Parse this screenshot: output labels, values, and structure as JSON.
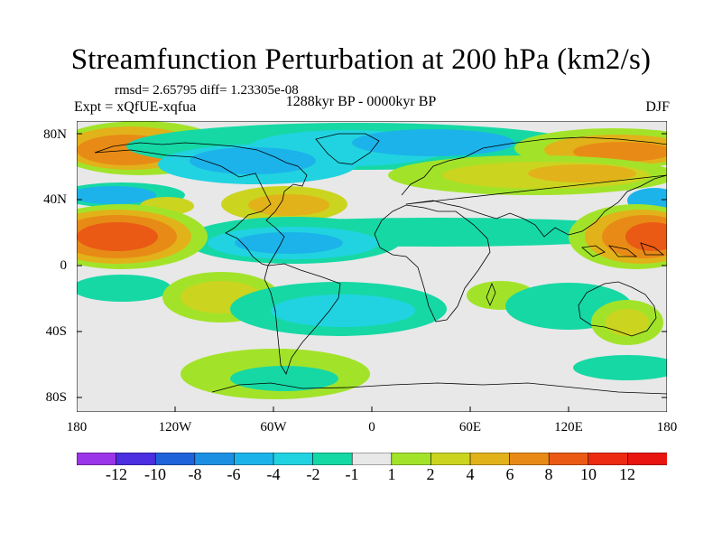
{
  "title": "Streamfunction Perturbation at 200 hPa (km2/s)",
  "stats_line": "rmsd= 2.65795 diff= 1.23305e-08",
  "experiment": "Expt = xQfUE-xqfua",
  "period": "1288kyr BP - 0000kyr BP",
  "season": "DJF",
  "map": {
    "lat_labels": [
      "80N",
      "40N",
      "0",
      "40S",
      "80S"
    ],
    "lon_labels": [
      "180",
      "120W",
      "60W",
      "0",
      "60E",
      "120E",
      "180"
    ]
  },
  "colorbar": {
    "labels": [
      "-12",
      "-10",
      "-8",
      "-6",
      "-4",
      "-2",
      "-1",
      "1",
      "2",
      "4",
      "6",
      "8",
      "10",
      "12"
    ],
    "colors": [
      "#9b35e8",
      "#4a2ee0",
      "#1f63da",
      "#1d8fe3",
      "#1cb3ea",
      "#21d3e0",
      "#16d8a5",
      "#e8e8e8",
      "#a2e32a",
      "#cbd41f",
      "#e2b21a",
      "#e88b16",
      "#ea5a14",
      "#ec2a12",
      "#e8140f"
    ]
  }
}
